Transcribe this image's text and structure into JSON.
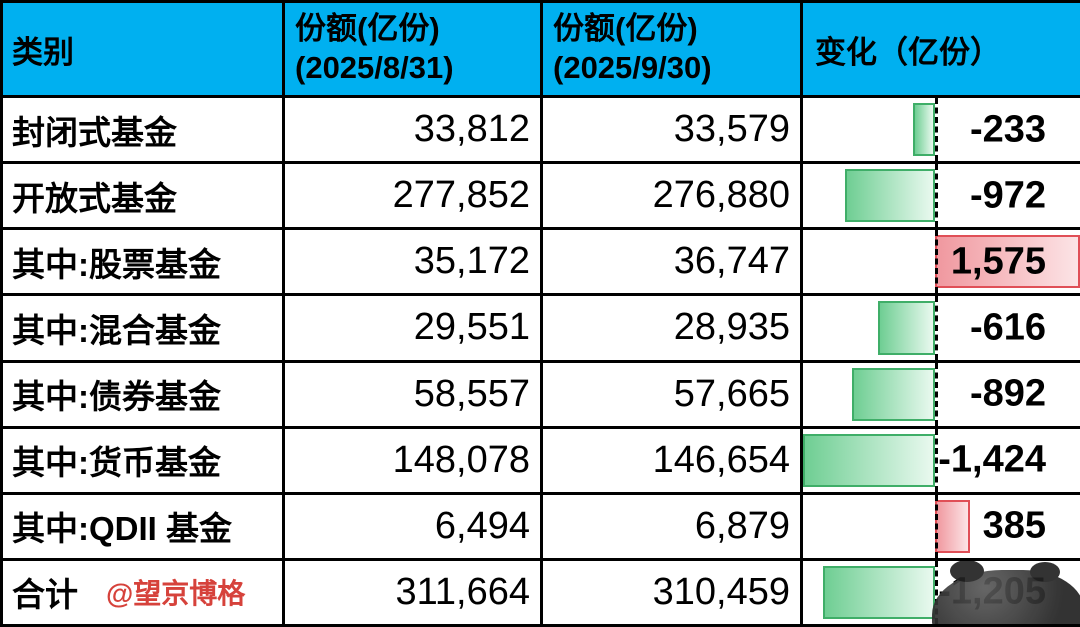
{
  "header": {
    "col_category": "类别",
    "col_aug_line1": "份额(亿份)",
    "col_aug_line2": "(2025/8/31)",
    "col_sep_line1": "份额(亿份)",
    "col_sep_line2": "(2025/9/30)",
    "col_change": "变化（亿份）"
  },
  "colors": {
    "header_bg": "#00B0F0",
    "grid_line": "#000000",
    "text": "#000000",
    "neg_bar_border": "#3FAE68",
    "neg_bar_fill": "#6FCE93",
    "neg_bar_fill_light": "#E9F9EF",
    "pos_bar_border": "#E04F57",
    "pos_bar_fill": "#F0989F",
    "pos_bar_fill_light": "#FCE4E6",
    "watermark_red": "#D6423B",
    "sticker_dark": "#222222"
  },
  "chart_data": {
    "type": "table",
    "columns": [
      "类别",
      "份额(亿份) (2025/8/31)",
      "份额(亿份) (2025/9/30)",
      "变化（亿份）"
    ],
    "bar_style": "data bars: negative values are green bars extending left of a dashed zero axis, positive values are red bars extending right",
    "rows": [
      {
        "category": "封闭式基金",
        "share_aug_text": "33,812",
        "share_aug": 33812,
        "share_sep_text": "33,579",
        "share_sep": 33579,
        "change_text": "-233",
        "change": -233
      },
      {
        "category": "开放式基金",
        "share_aug_text": "277,852",
        "share_aug": 277852,
        "share_sep_text": "276,880",
        "share_sep": 276880,
        "change_text": "-972",
        "change": -972
      },
      {
        "category": "其中:股票基金",
        "share_aug_text": "35,172",
        "share_aug": 35172,
        "share_sep_text": "36,747",
        "share_sep": 36747,
        "change_text": "1,575",
        "change": 1575
      },
      {
        "category": "其中:混合基金",
        "share_aug_text": "29,551",
        "share_aug": 29551,
        "share_sep_text": "28,935",
        "share_sep": 28935,
        "change_text": "-616",
        "change": -616
      },
      {
        "category": "其中:债券基金",
        "share_aug_text": "58,557",
        "share_aug": 58557,
        "share_sep_text": "57,665",
        "share_sep": 57665,
        "change_text": "-892",
        "change": -892
      },
      {
        "category": "其中:货币基金",
        "share_aug_text": "148,078",
        "share_aug": 148078,
        "share_sep_text": "146,654",
        "share_sep": 146654,
        "change_text": "-1,424",
        "change": -1424
      },
      {
        "category": "其中:QDII 基金",
        "share_aug_text": "6,494",
        "share_aug": 6494,
        "share_sep_text": "6,879",
        "share_sep": 6879,
        "change_text": "385",
        "change": 385
      },
      {
        "category": "合计",
        "watermark": "@望京博格",
        "share_aug_text": "311,664",
        "share_aug": 311664,
        "share_sep_text": "310,459",
        "share_sep": 310459,
        "change_text": "-1,205",
        "change": -1205,
        "obscured": true
      }
    ]
  }
}
